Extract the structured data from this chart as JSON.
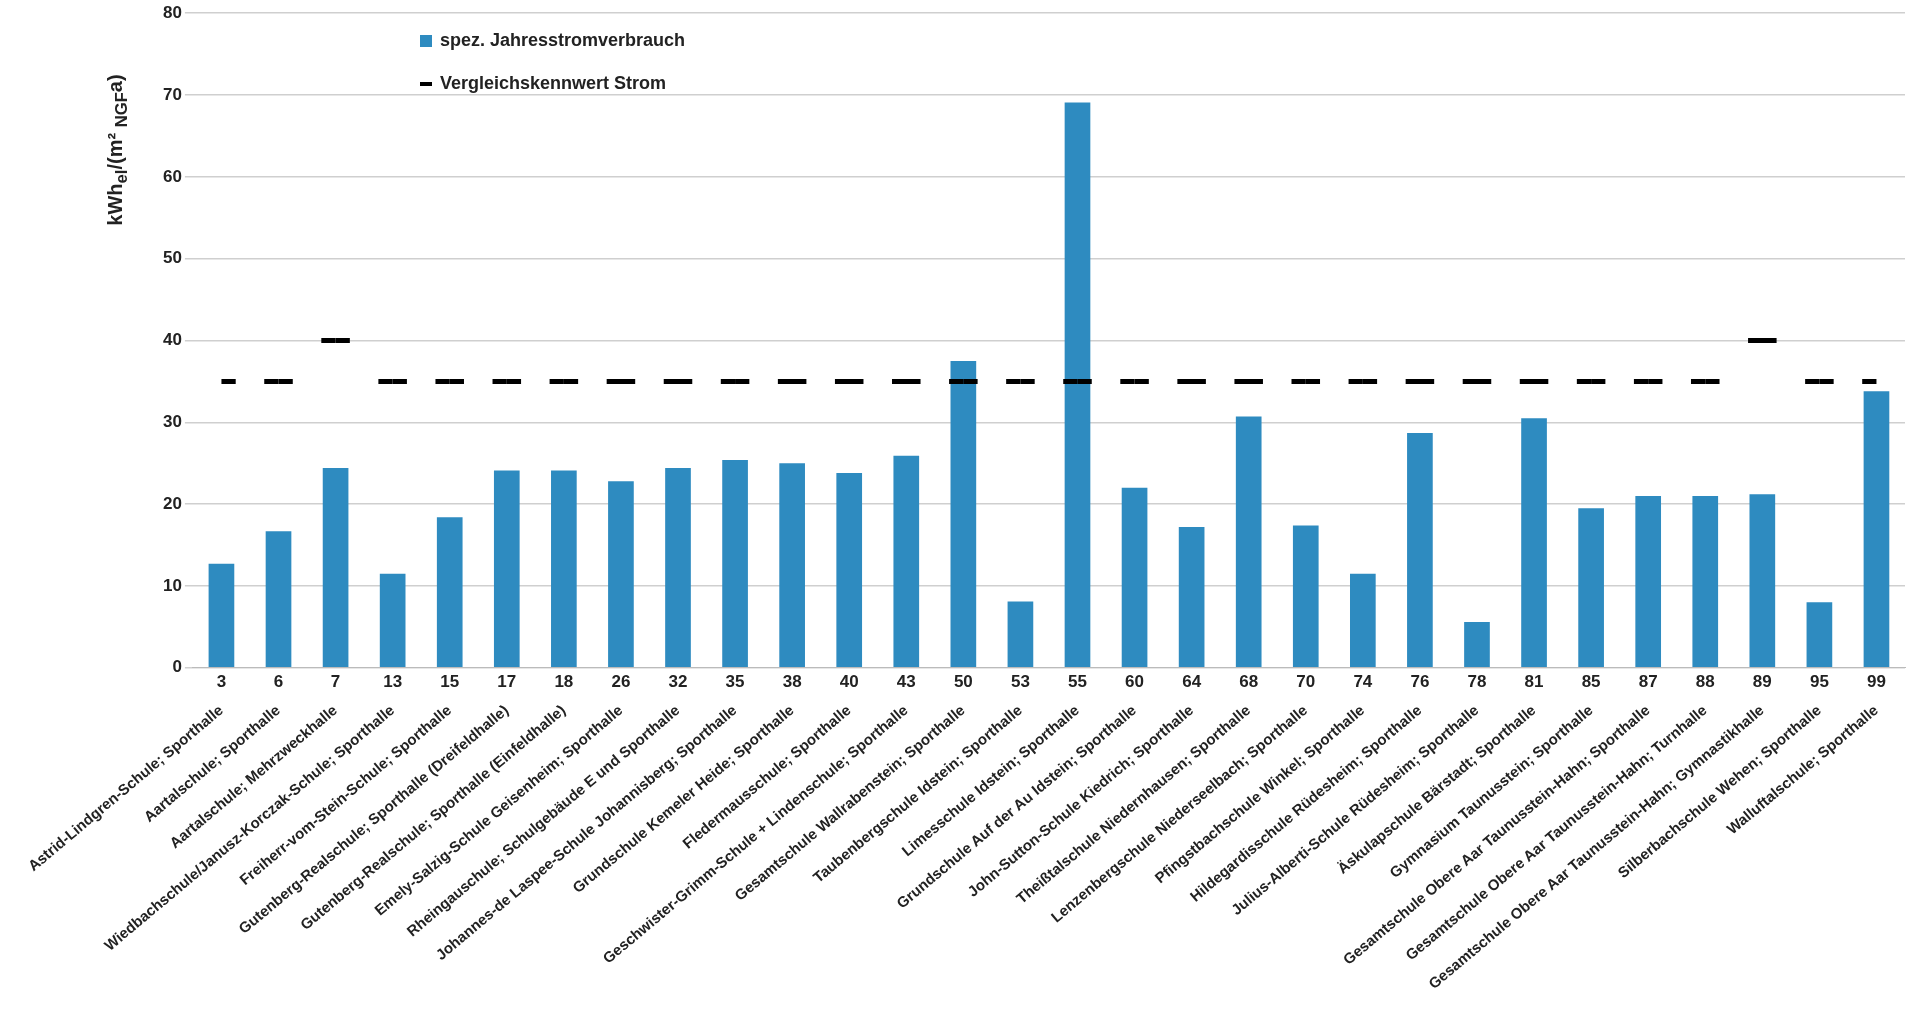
{
  "chart_data": {
    "type": "bar",
    "ylabel": "kWh$_{el}$/(m² $_{NGF}$a)",
    "categories": [
      "Astrid-Lindgren-Schule; Sporthalle",
      "Aartalschule; Sporthalle",
      "Aartalschule; Mehrzweckhalle",
      "Wiedbachschule/Janusz-Korczak-Schule; Sporthalle",
      "Freiherr-vom-Stein-Schule; Sporthalle",
      "Gutenberg-Realschule; Sporthalle (Dreifeldhalle)",
      "Gutenberg-Realschule; Sporthalle (Einfeldhalle)",
      "Emely-Salzig-Schule Geisenheim; Sporthalle",
      "Rheingauschule; Schulgebäude E und Sporthalle",
      "Johannes-de Laspee-Schule Johannisberg; Sporthalle",
      "Grundschule Kemeler Heide; Sporthalle",
      "Fledermausschule; Sporthalle",
      "Geschwister-Grimm-Schule + Lindenschule; Sporthalle",
      "Gesamtschule Wallrabenstein; Sporthalle",
      "Taubenbergschule Idstein; Sporthalle",
      "Limesschule Idstein; Sporthalle",
      "Grundschule Auf der Au Idstein; Sporthalle",
      "John-Sutton-Schule Kiedrich; Sporthalle",
      "Theißtalschule Niedernhausen; Sporthalle",
      "Lenzenbergschule Niederseelbach; Sporthalle",
      "Pfingstbachschule Winkel; Sporthalle",
      "Hildegardisschule Rüdesheim; Sporthalle",
      "Julius-Alberti-Schule Rüdesheim; Sporthalle",
      "Äskulapschule Bärstadt; Sporthalle",
      "Gymnasium Taunusstein; Sporthalle",
      "Gesamtschule Obere Aar Taunusstein-Hahn; Sporthalle",
      "Gesamtschule Obere Aar Taunusstein-Hahn; Turnhalle",
      "Gesamtschule Obere Aar Taunusstein-Hahn; Gymnastikhalle",
      "Silberbachschule Wehen; Sporthalle",
      "Walluftalschule; Sporthalle"
    ],
    "series": [
      {
        "name": "spez. Jahresstromverbrauch",
        "color": "#2e8bc0",
        "values": [
          12.7,
          16.7,
          24.4,
          11.5,
          18.4,
          24.1,
          24.1,
          22.8,
          24.4,
          25.4,
          25.0,
          23.8,
          25.9,
          37.5,
          8.1,
          69.1,
          22.0,
          17.2,
          30.7,
          17.4,
          11.5,
          28.7,
          5.6,
          30.5,
          19.5,
          21.0,
          21.0,
          21.2,
          8.0,
          33.8
        ]
      },
      {
        "name": "Vergleichskennwert Strom",
        "type": "step",
        "line_style": "dashed",
        "color": "#000000",
        "values": [
          35,
          35,
          40,
          35,
          35,
          35,
          35,
          35,
          35,
          35,
          35,
          35,
          35,
          35,
          35,
          35,
          35,
          35,
          35,
          35,
          35,
          35,
          35,
          35,
          35,
          35,
          35,
          40,
          35,
          35
        ]
      }
    ],
    "annotations": [
      "3",
      "6",
      "7",
      "13",
      "15",
      "17",
      "18",
      "26",
      "32",
      "35",
      "38",
      "40",
      "43",
      "50",
      "53",
      "55",
      "60",
      "64",
      "68",
      "70",
      "74",
      "76",
      "78",
      "81",
      "85",
      "87",
      "88",
      "89",
      "95",
      "99"
    ],
    "ylim": [
      0,
      80
    ],
    "yticks": [
      0,
      10,
      20,
      30,
      40,
      50,
      60,
      70,
      80
    ],
    "grid": "y",
    "legend": "top left"
  }
}
